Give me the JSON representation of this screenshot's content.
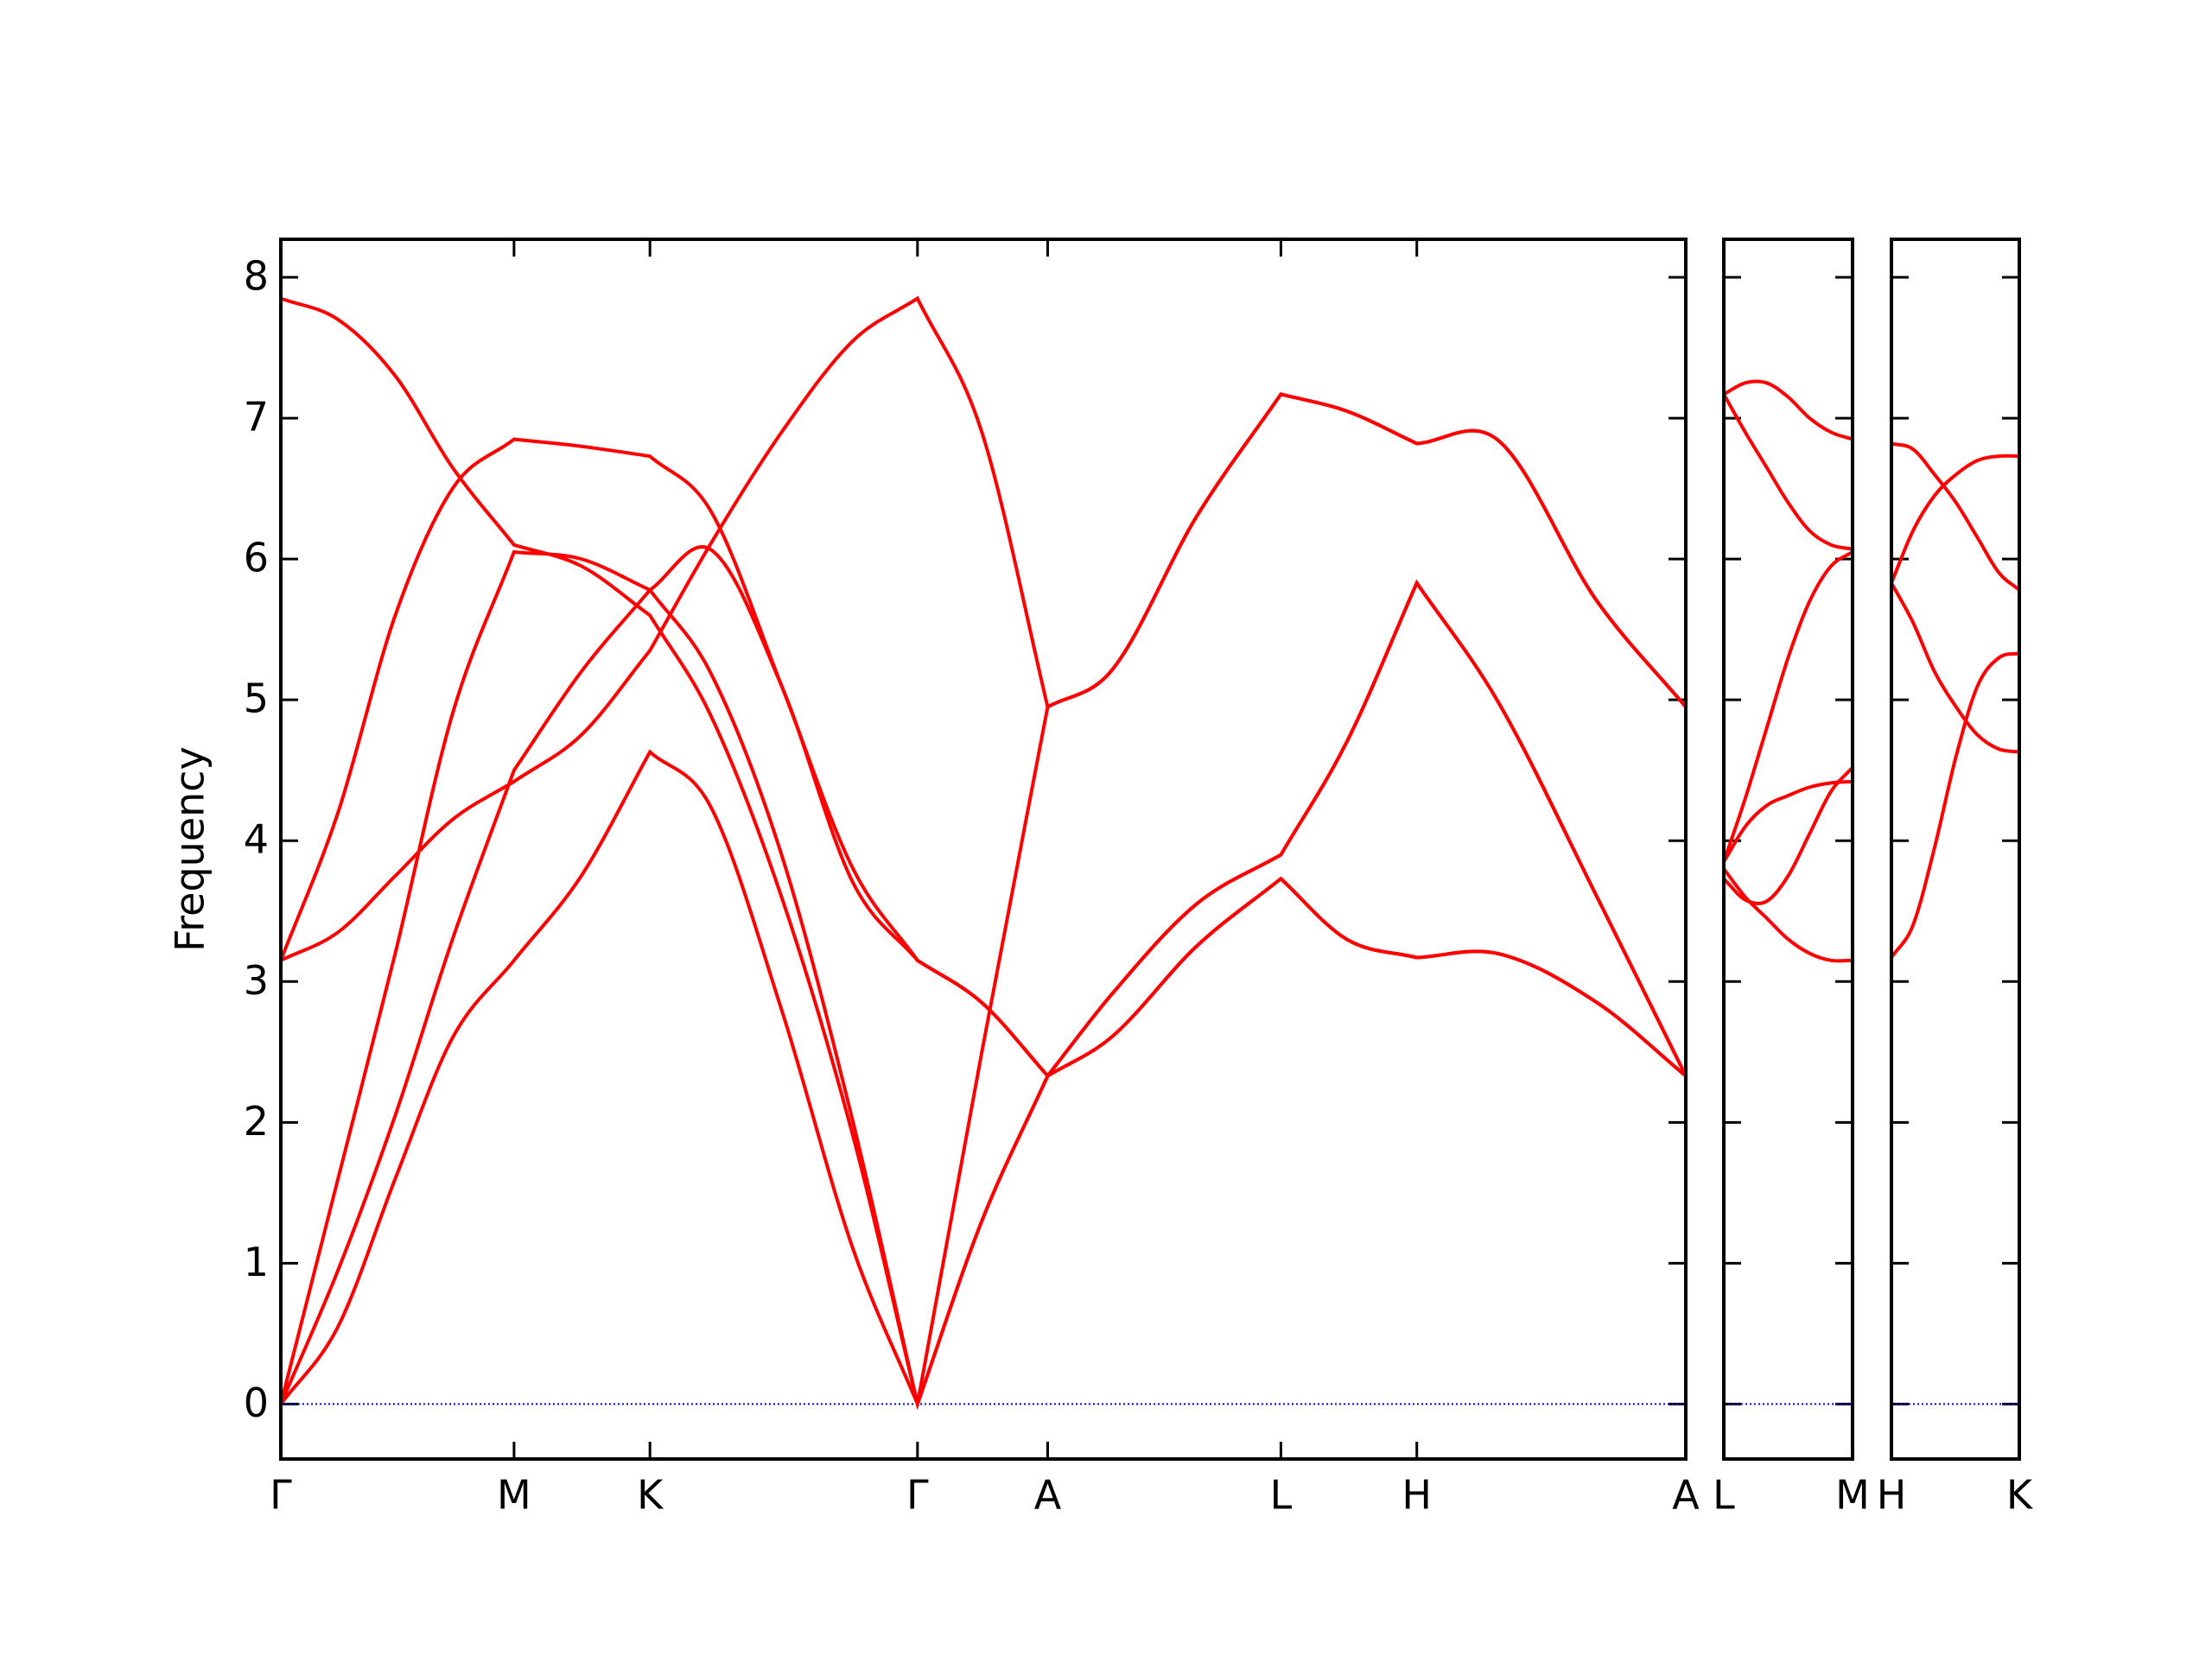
{
  "chart_data": [
    {
      "type": "line",
      "ylabel": "Frequency",
      "color": "#ff0000",
      "ylim": [
        -0.39,
        8.27
      ],
      "yticks": [
        0,
        1,
        2,
        3,
        4,
        5,
        6,
        7,
        8
      ],
      "hline": {
        "y": 0,
        "color": "#0000ff"
      },
      "xlim": [
        0,
        9.82
      ],
      "xticks": [
        {
          "value": 0,
          "label": "Γ"
        },
        {
          "value": 1.63,
          "label": "M"
        },
        {
          "value": 2.58,
          "label": "K"
        },
        {
          "value": 4.45,
          "label": "Γ"
        },
        {
          "value": 5.36,
          "label": "A"
        },
        {
          "value": 6.99,
          "label": "L"
        },
        {
          "value": 7.94,
          "label": "H"
        },
        {
          "value": 9.82,
          "label": "A"
        }
      ],
      "x": [
        0,
        0.4,
        0.8,
        1.2,
        1.63,
        2.1,
        2.58,
        3.0,
        3.5,
        4.0,
        4.45,
        4.9,
        5.36,
        5.8,
        6.4,
        6.99,
        7.45,
        7.94,
        8.5,
        9.2,
        9.82
      ],
      "series": [
        {
          "values": [
            0,
            0.55,
            1.6,
            2.6,
            3.15,
            3.75,
            4.63,
            4.25,
            2.8,
            1.1,
            0,
            1.3,
            2.33,
            2.6,
            3.25,
            3.73,
            3.3,
            3.17,
            3.2,
            2.85,
            2.33
          ]
        },
        {
          "values": [
            0,
            0.95,
            2.05,
            3.3,
            4.5,
            5.2,
            5.78,
            6.07,
            5.1,
            3.7,
            3.15,
            2.85,
            2.33,
            2.9,
            3.55,
            3.9,
            4.7,
            5.83,
            5.0,
            3.6,
            2.33
          ]
        },
        {
          "values": [
            0,
            1.6,
            3.2,
            4.9,
            6.05,
            6.0,
            5.78,
            5.2,
            3.9,
            2.0,
            0,
            2.5,
            4.95,
            5.2,
            6.3,
            7.17,
            7.05,
            6.82,
            6.85,
            5.7,
            4.95
          ]
        },
        {
          "values": [
            7.85,
            7.7,
            7.3,
            6.65,
            6.1,
            5.95,
            5.6,
            4.9,
            3.6,
            1.9,
            0,
            1.3,
            2.33,
            2.6,
            3.25,
            3.73,
            3.3,
            3.17,
            3.2,
            2.85,
            2.33
          ]
        },
        {
          "values": [
            3.15,
            3.35,
            3.75,
            4.15,
            4.42,
            4.75,
            5.35,
            6.1,
            6.9,
            7.55,
            7.85,
            6.9,
            4.95,
            5.2,
            6.3,
            7.17,
            7.05,
            6.82,
            6.85,
            5.7,
            4.95
          ]
        },
        {
          "values": [
            3.15,
            4.2,
            5.6,
            6.5,
            6.85,
            6.8,
            6.73,
            6.35,
            5.1,
            3.8,
            3.15,
            2.85,
            2.33,
            2.9,
            3.55,
            3.9,
            4.7,
            5.83,
            5.0,
            3.6,
            2.33
          ]
        }
      ]
    },
    {
      "type": "line",
      "color": "#ff0000",
      "xlim": [
        0,
        0.9
      ],
      "xticks": [
        {
          "value": 0,
          "label": "L"
        },
        {
          "value": 0.9,
          "label": "M"
        }
      ],
      "x": [
        0,
        0.15,
        0.3,
        0.45,
        0.6,
        0.75,
        0.9
      ],
      "series": [
        {
          "values": [
            7.17,
            7.25,
            7.25,
            7.15,
            7.0,
            6.9,
            6.85
          ]
        },
        {
          "values": [
            7.17,
            6.9,
            6.65,
            6.4,
            6.2,
            6.1,
            6.07
          ]
        },
        {
          "values": [
            3.85,
            4.3,
            4.8,
            5.3,
            5.7,
            5.95,
            6.05
          ]
        },
        {
          "values": [
            3.85,
            4.1,
            4.25,
            4.32,
            4.38,
            4.41,
            4.42
          ]
        },
        {
          "values": [
            3.73,
            3.58,
            3.57,
            3.75,
            4.05,
            4.35,
            4.52
          ]
        },
        {
          "values": [
            3.8,
            3.6,
            3.45,
            3.3,
            3.2,
            3.15,
            3.15
          ]
        }
      ]
    },
    {
      "type": "line",
      "color": "#ff0000",
      "xlim": [
        0,
        0.89
      ],
      "xticks": [
        {
          "value": 0,
          "label": "H"
        },
        {
          "value": 0.89,
          "label": "K"
        }
      ],
      "x": [
        0,
        0.15,
        0.3,
        0.45,
        0.6,
        0.75,
        0.89
      ],
      "series": [
        {
          "values": [
            6.82,
            6.78,
            6.6,
            6.4,
            6.15,
            5.9,
            5.78
          ]
        },
        {
          "values": [
            5.83,
            6.2,
            6.45,
            6.6,
            6.7,
            6.73,
            6.73
          ]
        },
        {
          "values": [
            5.83,
            5.55,
            5.2,
            4.95,
            4.75,
            4.65,
            4.63
          ]
        },
        {
          "values": [
            3.17,
            3.4,
            3.95,
            4.6,
            5.1,
            5.3,
            5.33
          ]
        }
      ]
    }
  ]
}
